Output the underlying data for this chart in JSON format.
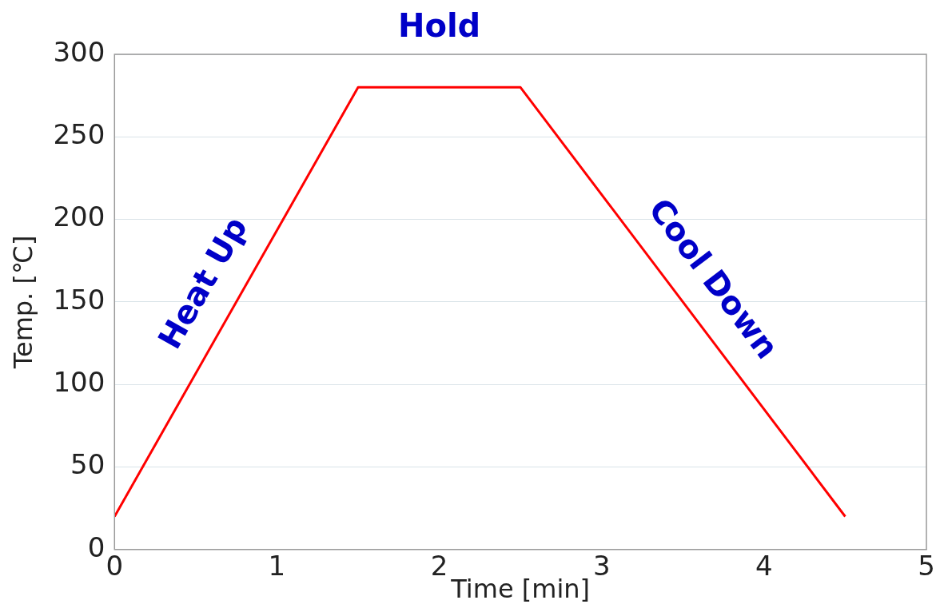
{
  "chart_data": {
    "type": "line",
    "xlabel": "Time [min]",
    "ylabel": "Temp. [℃]",
    "series": [
      {
        "color": "#ff0000",
        "x": [
          0,
          1.5,
          2.5,
          4.5
        ],
        "values": [
          20,
          280,
          280,
          20
        ]
      }
    ],
    "xlim": [
      0,
      5
    ],
    "xticks": [
      0,
      1,
      2,
      3,
      4,
      5
    ],
    "ylim": [
      0,
      300
    ],
    "yticks": [
      0,
      50,
      100,
      150,
      200,
      250,
      300
    ],
    "grid": "y",
    "legend": false,
    "marker": "none",
    "line_style": "solid",
    "annotations": [
      "Heat Up",
      "Hold",
      "Cool Down"
    ]
  }
}
